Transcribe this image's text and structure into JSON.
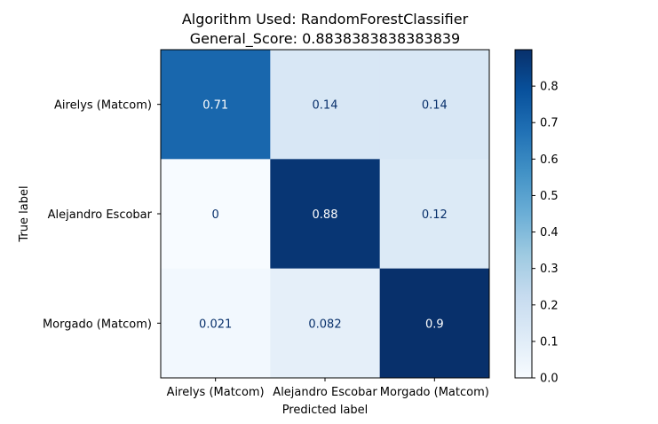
{
  "chart_data": {
    "type": "heatmap",
    "title_line1": "Algorithm Used: RandomForestClassifier",
    "title_line2": "General_Score: 0.8838383838383839",
    "xlabel": "Predicted label",
    "ylabel": "True label",
    "row_labels": [
      "Airelys (Matcom)",
      "Alejandro Escobar",
      "Morgado (Matcom)"
    ],
    "col_labels": [
      "Airelys (Matcom)",
      "Alejandro Escobar",
      "Morgado (Matcom)"
    ],
    "values": [
      [
        0.71,
        0.14,
        0.14
      ],
      [
        0,
        0.88,
        0.12
      ],
      [
        0.021,
        0.082,
        0.9
      ]
    ],
    "value_labels": [
      [
        "0.71",
        "0.14",
        "0.14"
      ],
      [
        "0",
        "0.88",
        "0.12"
      ],
      [
        "0.021",
        "0.082",
        "0.9"
      ]
    ],
    "colorbar": {
      "min": 0,
      "max": 0.9,
      "ticks": [
        0.0,
        0.1,
        0.2,
        0.3,
        0.4,
        0.5,
        0.6,
        0.7,
        0.8
      ],
      "tick_labels": [
        "0.0",
        "0.1",
        "0.2",
        "0.3",
        "0.4",
        "0.5",
        "0.6",
        "0.7",
        "0.8"
      ]
    },
    "colormap": "Blues",
    "grid": false
  }
}
